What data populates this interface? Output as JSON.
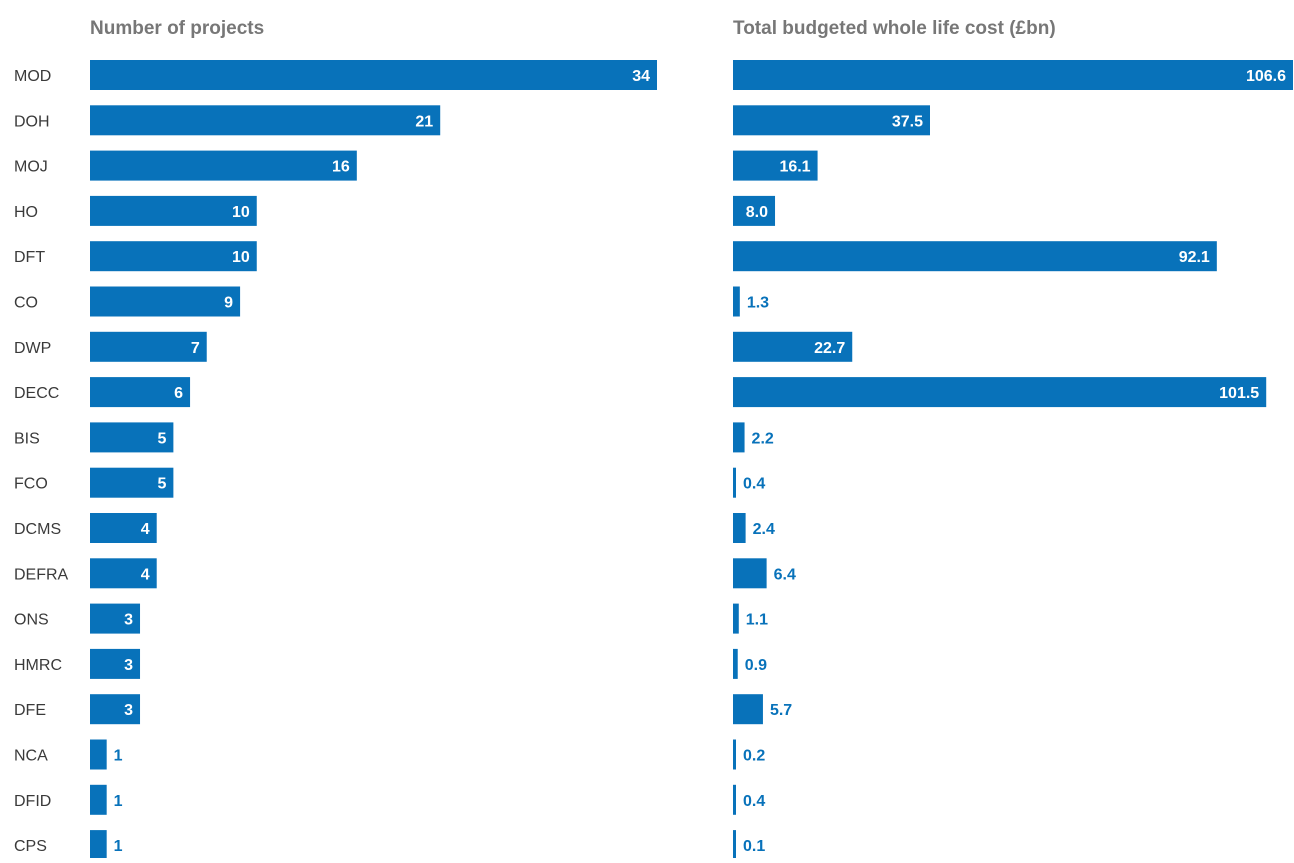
{
  "colors": {
    "bar": "#0872BA",
    "label_outside": "#0872BA",
    "label_inside": "#FFFFFF",
    "title": "#777777",
    "category_text": "#3A3A3A"
  },
  "chart_data": [
    {
      "type": "bar",
      "orientation": "horizontal",
      "title": "Number of projects",
      "xlabel": "",
      "ylabel": "",
      "grid": false,
      "xlim": [
        0,
        34
      ],
      "categories": [
        "MOD",
        "DOH",
        "MOJ",
        "HO",
        "DFT",
        "CO",
        "DWP",
        "DECC",
        "BIS",
        "FCO",
        "DCMS",
        "DEFRA",
        "ONS",
        "HMRC",
        "DFE",
        "NCA",
        "DFID",
        "CPS"
      ],
      "values": [
        34,
        21,
        16,
        10,
        10,
        9,
        7,
        6,
        5,
        5,
        4,
        4,
        3,
        3,
        3,
        1,
        1,
        1
      ],
      "labels": [
        "34",
        "21",
        "16",
        "10",
        "10",
        "9",
        "7",
        "6",
        "5",
        "5",
        "4",
        "4",
        "3",
        "3",
        "3",
        "1",
        "1",
        "1"
      ]
    },
    {
      "type": "bar",
      "orientation": "horizontal",
      "title": "Total budgeted whole life cost (£bn)",
      "xlabel": "",
      "ylabel": "",
      "grid": false,
      "xlim": [
        0,
        106.6
      ],
      "categories": [
        "MOD",
        "DOH",
        "MOJ",
        "HO",
        "DFT",
        "CO",
        "DWP",
        "DECC",
        "BIS",
        "FCO",
        "DCMS",
        "DEFRA",
        "ONS",
        "HMRC",
        "DFE",
        "NCA",
        "DFID",
        "CPS"
      ],
      "values": [
        106.6,
        37.5,
        16.1,
        8.0,
        92.1,
        1.3,
        22.7,
        101.5,
        2.2,
        0.4,
        2.4,
        6.4,
        1.1,
        0.9,
        5.7,
        0.2,
        0.4,
        0.1
      ],
      "labels": [
        "106.6",
        "37.5",
        "16.1",
        "8.0",
        "92.1",
        "1.3",
        "22.7",
        "101.5",
        "2.2",
        "0.4",
        "2.4",
        "6.4",
        "1.1",
        "0.9",
        "5.7",
        "0.2",
        "0.4",
        "0.1"
      ]
    }
  ]
}
